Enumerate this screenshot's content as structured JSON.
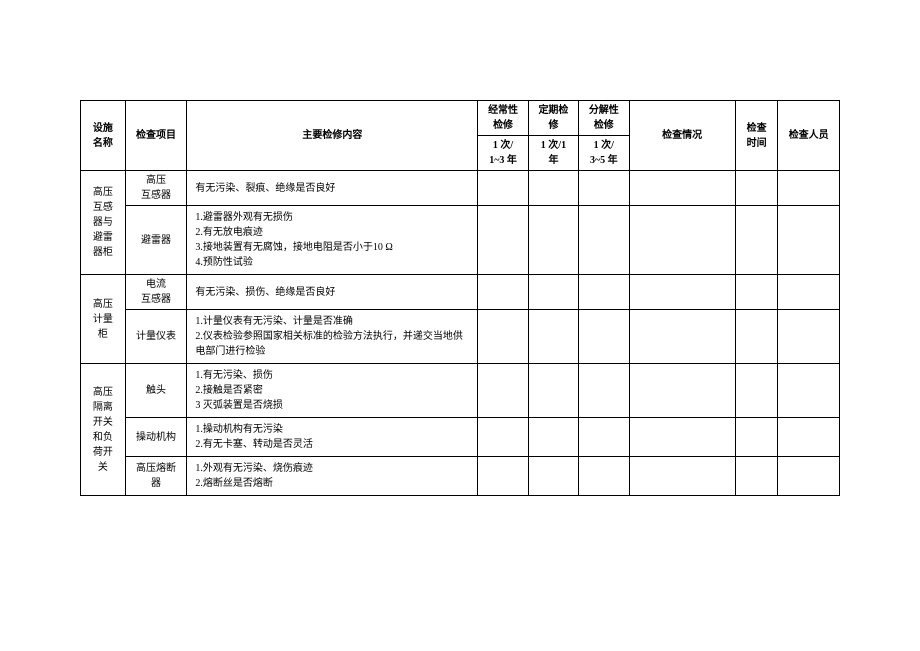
{
  "headers": {
    "facility": "设施\n名称",
    "item": "检查项目",
    "content": "主要检修内容",
    "freq1_top": "经常性\n检修",
    "freq2_top": "定期检\n修",
    "freq3_top": "分解性\n检修",
    "freq1_bot": "1 次/\n1~3 年",
    "freq2_bot": "1 次/1\n年",
    "freq3_bot": "1 次/\n3~5 年",
    "status": "检查情况",
    "time": "检查\n时间",
    "person": "检查人员"
  },
  "rows": [
    {
      "facility": "高压\n互感\n器与\n避雷\n器柜",
      "facility_rowspan": 2,
      "item": "高压\n互感器",
      "content": "有无污染、裂痕、绝缘是否良好"
    },
    {
      "item": "避雷器",
      "content": "1.避雷器外观有无损伤\n2.有无放电痕迹\n3.接地装置有无腐蚀，接地电阻是否小于10 Ω\n4.预防性试验"
    },
    {
      "facility": "高压\n计量\n柜",
      "facility_rowspan": 2,
      "item": "电流\n互感器",
      "content": "有无污染、损伤、绝缘是否良好"
    },
    {
      "item": "计量仪表",
      "content": "1.计量仪表有无污染、计量是否准确\n2.仪表检验参照国家相关标准的检验方法执行，并递交当地供电部门进行检验"
    },
    {
      "facility": "高压\n隔离\n开关\n和负\n荷开\n关",
      "facility_rowspan": 3,
      "item": "触头",
      "content": "1.有无污染、损伤\n2.接触是否紧密\n3 灭弧装置是否烧损"
    },
    {
      "item": "操动机构",
      "content": "1.操动机构有无污染\n2.有无卡塞、转动是否灵活"
    },
    {
      "item": "高压熔断\n器",
      "content": "1.外观有无污染、烧伤痕迹\n2.熔断丝是否熔断"
    }
  ]
}
